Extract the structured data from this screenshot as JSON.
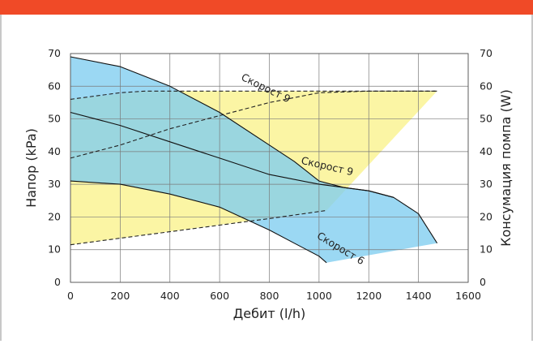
{
  "theme": {
    "accent": "#f04a27",
    "frame": "#c8c8c8",
    "yellow_area": "#fbf5a4",
    "blue_area": "#7fcdef",
    "teal_overlap": "#a8dcd0",
    "grid": "#7a7a7a"
  },
  "chart_data": {
    "type": "area",
    "title": "",
    "xlabel": "Дебит (l/h)",
    "ylabel": "Напор (kPa)",
    "y2label": "Консумация помпа (W)",
    "xlim": [
      0,
      1600
    ],
    "ylim": [
      0,
      70
    ],
    "y2lim": [
      0,
      70
    ],
    "x_ticks": [
      0,
      200,
      400,
      600,
      800,
      1000,
      1200,
      1400,
      1600
    ],
    "y_ticks": [
      0,
      10,
      20,
      30,
      40,
      50,
      60,
      70
    ],
    "y2_ticks": [
      0,
      10,
      20,
      30,
      40,
      50,
      60,
      70
    ],
    "grid": true,
    "head_curves": [
      {
        "name": "Скорост 9",
        "x": [
          0,
          200,
          400,
          600,
          800,
          900,
          1000,
          1100,
          1200,
          1300,
          1400,
          1475
        ],
        "y": [
          69,
          66,
          60,
          52,
          42,
          37,
          31,
          29,
          28,
          26,
          21,
          12
        ]
      },
      {
        "name": "Скорост 9",
        "x": [
          0,
          200,
          400,
          600,
          800,
          1000,
          1200,
          1300
        ],
        "y": [
          52,
          48,
          43,
          38,
          33,
          30,
          28,
          26
        ]
      },
      {
        "name": "Скорост 6",
        "x": [
          0,
          200,
          400,
          600,
          800,
          900,
          1000,
          1030
        ],
        "y": [
          31,
          30,
          27,
          23,
          16,
          12,
          8,
          6
        ]
      }
    ],
    "power_curves": [
      {
        "x": [
          0,
          200,
          300,
          600,
          900,
          1200,
          1475
        ],
        "y": [
          56,
          58,
          58.5,
          58.5,
          58.5,
          58.5,
          58.5
        ]
      },
      {
        "x": [
          0,
          200,
          400,
          600,
          800,
          1000,
          1200,
          1475
        ],
        "y": [
          38,
          42,
          47,
          51,
          55,
          58,
          58.5,
          58.5
        ]
      },
      {
        "x": [
          0,
          200,
          400,
          600,
          800,
          1030
        ],
        "y": [
          11.5,
          13.5,
          15.5,
          17.5,
          19.5,
          22
        ]
      }
    ],
    "power_band": {
      "upper": {
        "x": [
          0,
          300,
          600,
          900,
          1200,
          1475
        ],
        "y": [
          56,
          58.5,
          58.5,
          58.5,
          58.5,
          58.5
        ]
      },
      "lower": {
        "x": [
          1475,
          1030,
          0
        ],
        "y": [
          58.5,
          22,
          11.5
        ]
      }
    },
    "labels": [
      {
        "text": "Скорост 9",
        "x": 780,
        "y": 58.5,
        "angle": 26
      },
      {
        "text": "Скорост 9",
        "x": 1030,
        "y": 34.5,
        "angle": 13
      },
      {
        "text": "Скорост 6",
        "x": 1080,
        "y": 9.5,
        "angle": 31
      }
    ],
    "y_tick_labels": [
      "0",
      "10",
      "20",
      "30",
      "40",
      "50",
      "60",
      "70"
    ],
    "x_tick_labels": [
      "0",
      "200",
      "400",
      "600",
      "800",
      "1000",
      "1200",
      "1400",
      "1600"
    ]
  }
}
